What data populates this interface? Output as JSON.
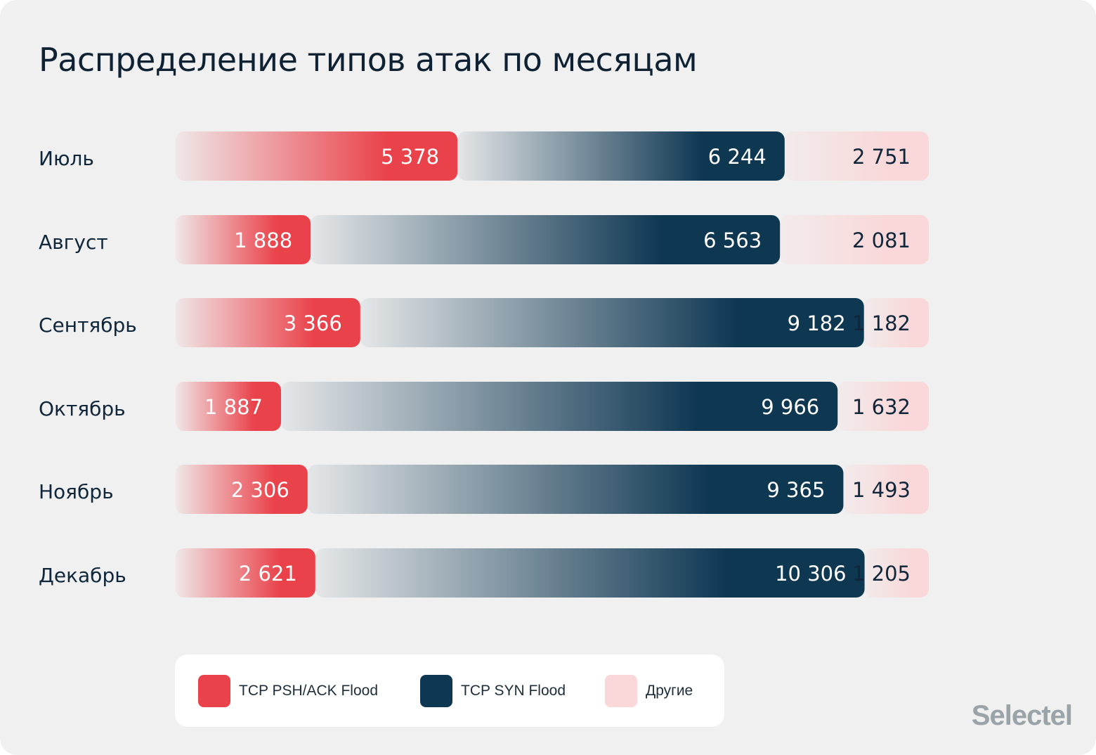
{
  "chart_data": {
    "type": "bar",
    "orientation": "horizontal",
    "stacked": "100%",
    "title": "Распределение типов атак по месяцам",
    "categories": [
      "Июль",
      "Август",
      "Сентябрь",
      "Октябрь",
      "Ноябрь",
      "Декабрь"
    ],
    "series": [
      {
        "name": "TCP PSH/ACK Flood",
        "color": "#ea424a",
        "values": [
          5378,
          1888,
          3366,
          1887,
          2306,
          2621
        ],
        "labels": [
          "5 378",
          "1 888",
          "3 366",
          "1 887",
          "2 306",
          "2 621"
        ]
      },
      {
        "name": "TCP SYN Flood",
        "color": "#0e3752",
        "values": [
          6244,
          6563,
          9182,
          9966,
          9365,
          10306
        ],
        "labels": [
          "6 244",
          "6 563",
          "9 182",
          "9 966",
          "9 365",
          "10 306"
        ]
      },
      {
        "name": "Другие",
        "color": "#fad7d8",
        "values": [
          2751,
          2081,
          1182,
          1632,
          1493,
          1205
        ],
        "labels": [
          "2 751",
          "2 081",
          "1 182",
          "1 632",
          "1 493",
          "1 205"
        ]
      }
    ],
    "legend": "bottom",
    "grid": false
  },
  "logo": "Selectel"
}
